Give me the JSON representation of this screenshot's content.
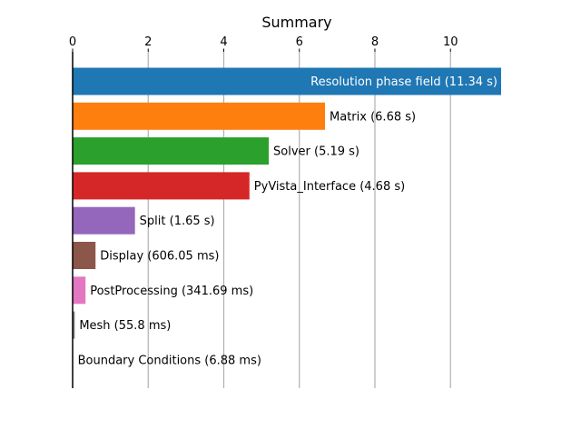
{
  "chart_data": {
    "type": "bar",
    "orientation": "horizontal",
    "title": "Summary",
    "xlim": [
      0,
      11.34
    ],
    "xticks": [
      0,
      2,
      4,
      6,
      8,
      10
    ],
    "xtick_position": "top",
    "grid": "vertical",
    "categories": [
      "Resolution phase field",
      "Matrix",
      "Solver",
      "PyVista_Interface",
      "Split",
      "Display",
      "PostProcessing",
      "Mesh",
      "Boundary Conditions"
    ],
    "values": [
      11.34,
      6.68,
      5.19,
      4.68,
      1.65,
      0.60605,
      0.34169,
      0.0558,
      0.00688
    ],
    "labels": [
      "Resolution phase field (11.34 s)",
      "Matrix (6.68 s)",
      "Solver (5.19 s)",
      "PyVista_Interface (4.68 s)",
      "Split (1.65 s)",
      "Display (606.05 ms)",
      "PostProcessing (341.69 ms)",
      "Mesh (55.8 ms)",
      "Boundary Conditions (6.88 ms)"
    ],
    "colors": [
      "#1f77b4",
      "#ff7f0e",
      "#2ca02c",
      "#d62728",
      "#9467bd",
      "#8c564b",
      "#e377c2",
      "#7f7f7f",
      "#bcbd22"
    ]
  }
}
